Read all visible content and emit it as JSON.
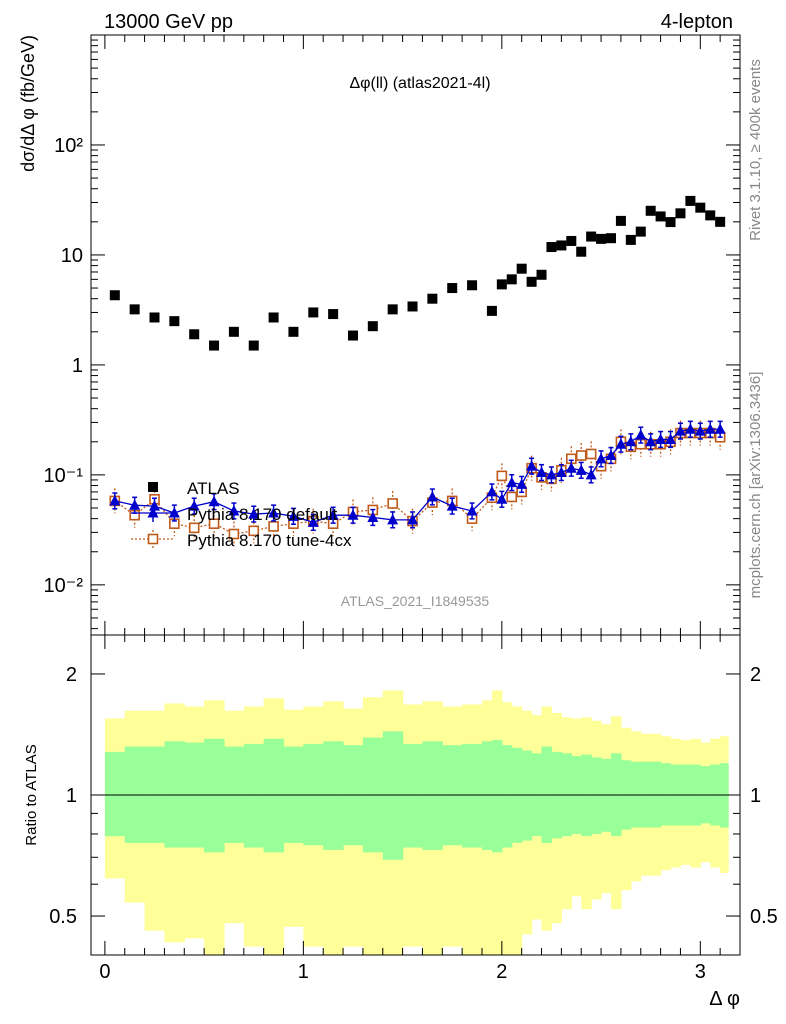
{
  "header": {
    "left": "13000 GeV pp",
    "right": "4-lepton"
  },
  "side_labels": {
    "rivet": "Rivet 3.1.10, ≥ 400k events",
    "mcplots": "mcplots.cern.ch [arXiv:1306.3436]"
  },
  "colors": {
    "atlas": "#000000",
    "pythia_default": "#0000cc",
    "pythia_4cx": "#c05a1a",
    "band_inner": "#99ff99",
    "band_outer": "#ffff99"
  },
  "chart_data": [
    {
      "type": "scatter",
      "title": "Δφ(ll) (atlas2021-4l)",
      "watermark": "ATLAS_2021_I1849535",
      "ylabel": "dσ/dΔ φ (fb/GeV)",
      "yscale": "log",
      "ylim": [
        0.0035,
        1000
      ],
      "xlim": [
        -0.07,
        3.2
      ],
      "ytick_labels": [
        "10⁻²",
        "10⁻¹",
        "1",
        "10",
        "10²"
      ],
      "legend": [
        "ATLAS",
        "Pythia 8.170 default",
        "Pythia 8.170 tune-4cx"
      ],
      "legend_position": "left",
      "series": [
        {
          "name": "ATLAS",
          "marker": "filled-square",
          "x": [
            0.05,
            0.15,
            0.25,
            0.35,
            0.45,
            0.55,
            0.65,
            0.75,
            0.85,
            0.95,
            1.05,
            1.15,
            1.25,
            1.35,
            1.45,
            1.55,
            1.65,
            1.75,
            1.85,
            1.95,
            2.0,
            2.05,
            2.1,
            2.15,
            2.2,
            2.25,
            2.3,
            2.35,
            2.4,
            2.45,
            2.5,
            2.55,
            2.6,
            2.65,
            2.7,
            2.75,
            2.8,
            2.85,
            2.9,
            2.95,
            3.0,
            3.05,
            3.1
          ],
          "y": [
            4.3,
            3.2,
            2.7,
            2.5,
            1.9,
            1.5,
            2.0,
            1.5,
            2.7,
            2.0,
            3.0,
            2.9,
            1.85,
            2.25,
            3.2,
            3.4,
            4.0,
            5.0,
            5.3,
            3.1,
            5.4,
            6.0,
            7.5,
            5.7,
            6.6,
            11.8,
            12.2,
            13.4,
            10.7,
            14.7,
            14.0,
            14.2,
            20.4,
            13.7,
            16.3,
            25.2,
            22.4,
            19.9,
            23.9,
            31.0,
            26.9,
            22.9,
            20.0
          ]
        },
        {
          "name": "Pythia 8.170 default",
          "marker": "filled-triangle",
          "x": [
            0.05,
            0.15,
            0.25,
            0.35,
            0.45,
            0.55,
            0.65,
            0.75,
            0.85,
            0.95,
            1.05,
            1.15,
            1.25,
            1.35,
            1.45,
            1.55,
            1.65,
            1.75,
            1.85,
            1.95,
            2.0,
            2.05,
            2.1,
            2.15,
            2.2,
            2.25,
            2.3,
            2.35,
            2.4,
            2.45,
            2.5,
            2.55,
            2.6,
            2.65,
            2.7,
            2.75,
            2.8,
            2.85,
            2.9,
            2.95,
            3.0,
            3.05,
            3.1
          ],
          "y": [
            0.058,
            0.053,
            0.052,
            0.045,
            0.052,
            0.057,
            0.047,
            0.044,
            0.045,
            0.042,
            0.037,
            0.043,
            0.043,
            0.041,
            0.039,
            0.039,
            0.063,
            0.052,
            0.047,
            0.07,
            0.06,
            0.085,
            0.082,
            0.12,
            0.105,
            0.1,
            0.105,
            0.115,
            0.11,
            0.1,
            0.14,
            0.15,
            0.19,
            0.2,
            0.23,
            0.2,
            0.21,
            0.21,
            0.25,
            0.26,
            0.25,
            0.26,
            0.26
          ]
        },
        {
          "name": "Pythia 8.170 tune-4cx",
          "marker": "open-square",
          "x": [
            0.05,
            0.15,
            0.25,
            0.35,
            0.45,
            0.55,
            0.65,
            0.75,
            0.85,
            0.95,
            1.05,
            1.15,
            1.25,
            1.35,
            1.45,
            1.55,
            1.65,
            1.75,
            1.85,
            1.95,
            2.0,
            2.05,
            2.1,
            2.15,
            2.2,
            2.25,
            2.3,
            2.35,
            2.4,
            2.45,
            2.5,
            2.55,
            2.6,
            2.65,
            2.7,
            2.75,
            2.8,
            2.85,
            2.9,
            2.95,
            3.0,
            3.05,
            3.1
          ],
          "y": [
            0.058,
            0.043,
            0.06,
            0.036,
            0.033,
            0.036,
            0.029,
            0.031,
            0.034,
            0.036,
            0.038,
            0.036,
            0.046,
            0.048,
            0.055,
            0.038,
            0.056,
            0.058,
            0.04,
            0.062,
            0.098,
            0.063,
            0.07,
            0.115,
            0.095,
            0.092,
            0.11,
            0.14,
            0.15,
            0.155,
            0.12,
            0.14,
            0.2,
            0.18,
            0.19,
            0.19,
            0.19,
            0.2,
            0.24,
            0.24,
            0.24,
            0.24,
            0.22
          ]
        }
      ]
    },
    {
      "type": "area",
      "ylabel": "Ratio to ATLAS",
      "xlabel": "Δ φ",
      "yscale": "log",
      "ylim": [
        0.4,
        2.5
      ],
      "xlim": [
        -0.07,
        3.2
      ],
      "xtick_labels": [
        "0",
        "1",
        "2",
        "3"
      ],
      "ytick_labels": [
        "0.5",
        "1",
        "2"
      ],
      "reference_line": 1,
      "bin_edges": [
        0.0,
        0.1,
        0.2,
        0.3,
        0.4,
        0.5,
        0.6,
        0.7,
        0.8,
        0.9,
        1.0,
        1.1,
        1.2,
        1.3,
        1.4,
        1.5,
        1.6,
        1.7,
        1.8,
        1.9,
        1.95,
        2.0,
        2.05,
        2.1,
        2.15,
        2.2,
        2.25,
        2.3,
        2.35,
        2.4,
        2.45,
        2.5,
        2.55,
        2.6,
        2.65,
        2.7,
        2.75,
        2.8,
        2.85,
        2.9,
        2.95,
        3.0,
        3.05,
        3.1,
        3.14
      ],
      "inner_band": {
        "name": "stat",
        "upper": [
          1.28,
          1.32,
          1.32,
          1.36,
          1.35,
          1.38,
          1.32,
          1.34,
          1.38,
          1.32,
          1.34,
          1.36,
          1.33,
          1.39,
          1.44,
          1.34,
          1.36,
          1.33,
          1.34,
          1.36,
          1.37,
          1.33,
          1.31,
          1.29,
          1.27,
          1.32,
          1.28,
          1.27,
          1.25,
          1.26,
          1.24,
          1.23,
          1.27,
          1.22,
          1.21,
          1.21,
          1.21,
          1.2,
          1.19,
          1.19,
          1.19,
          1.18,
          1.19,
          1.2
        ],
        "lower": [
          0.79,
          0.76,
          0.76,
          0.74,
          0.74,
          0.72,
          0.76,
          0.74,
          0.72,
          0.76,
          0.75,
          0.73,
          0.75,
          0.72,
          0.69,
          0.74,
          0.73,
          0.75,
          0.74,
          0.73,
          0.72,
          0.74,
          0.76,
          0.77,
          0.79,
          0.76,
          0.78,
          0.79,
          0.8,
          0.79,
          0.8,
          0.81,
          0.79,
          0.82,
          0.83,
          0.83,
          0.83,
          0.84,
          0.84,
          0.84,
          0.84,
          0.85,
          0.84,
          0.83
        ]
      },
      "outer_band": {
        "name": "total",
        "upper": [
          1.55,
          1.62,
          1.62,
          1.69,
          1.66,
          1.72,
          1.62,
          1.66,
          1.74,
          1.63,
          1.66,
          1.71,
          1.64,
          1.75,
          1.82,
          1.68,
          1.71,
          1.66,
          1.68,
          1.72,
          1.82,
          1.7,
          1.66,
          1.62,
          1.58,
          1.66,
          1.6,
          1.56,
          1.55,
          1.56,
          1.53,
          1.5,
          1.57,
          1.47,
          1.44,
          1.42,
          1.42,
          1.4,
          1.38,
          1.37,
          1.38,
          1.35,
          1.38,
          1.4
        ],
        "lower": [
          0.62,
          0.54,
          0.46,
          0.43,
          0.44,
          0.38,
          0.48,
          0.42,
          0.37,
          0.47,
          0.42,
          0.38,
          0.42,
          0.36,
          0.28,
          0.42,
          0.38,
          0.42,
          0.4,
          0.35,
          0.28,
          0.39,
          0.35,
          0.45,
          0.49,
          0.46,
          0.48,
          0.52,
          0.56,
          0.52,
          0.55,
          0.57,
          0.52,
          0.58,
          0.61,
          0.63,
          0.63,
          0.65,
          0.66,
          0.67,
          0.66,
          0.68,
          0.66,
          0.64
        ]
      }
    }
  ]
}
